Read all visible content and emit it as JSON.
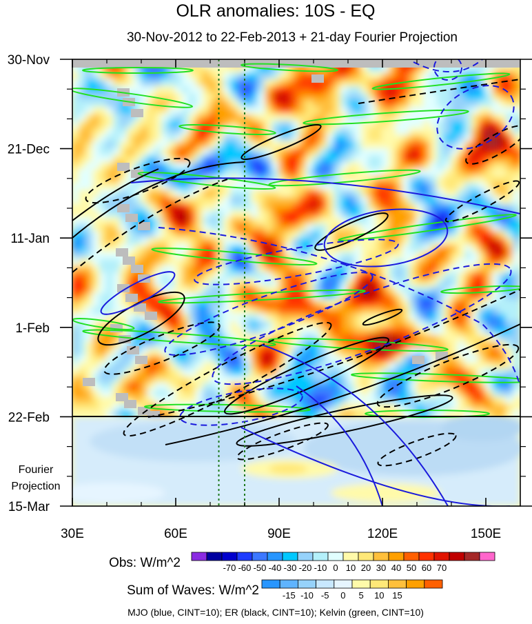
{
  "chart_data": {
    "type": "heatmap",
    "title": "OLR anomalies: 10S - EQ",
    "subtitle": "30-Nov-2012 to 22-Feb-2013 + 21-day Fourier Projection",
    "x_axis": {
      "range": [
        30,
        160
      ],
      "ticks": [
        {
          "value": 30,
          "label": "30E"
        },
        {
          "value": 60,
          "label": "60E"
        },
        {
          "value": 90,
          "label": "90E"
        },
        {
          "value": 120,
          "label": "120E"
        },
        {
          "value": 150,
          "label": "150E"
        }
      ]
    },
    "y_axis": {
      "direction": "top-to-bottom",
      "range_days": [
        0,
        105
      ],
      "ticks": [
        {
          "day": 0,
          "label": "30-Nov"
        },
        {
          "day": 21,
          "label": "21-Dec"
        },
        {
          "day": 42,
          "label": "11-Jan"
        },
        {
          "day": 63,
          "label": "1-Feb"
        },
        {
          "day": 84,
          "label": "22-Feb"
        },
        {
          "day": 105,
          "label": "15-Mar"
        }
      ],
      "projection_start_day": 84,
      "projection_label": [
        "Fourier",
        "Projection"
      ]
    },
    "reference_lines_lon": [
      72.5,
      80
    ],
    "obs_colorbar": {
      "label": "Obs: W/m^2",
      "colors": [
        "#8b2be2",
        "#0000a0",
        "#0000cd",
        "#1e3cff",
        "#3c78ff",
        "#2896ff",
        "#00c8ff",
        "#96d2fa",
        "#b4f0fa",
        "#e1ffff",
        "#fffaaa",
        "#ffe878",
        "#ffc03c",
        "#ffa000",
        "#ff6000",
        "#ff3200",
        "#e11400",
        "#c00000",
        "#a52828",
        "#ff66cc"
      ],
      "labels": [
        "-70",
        "-60",
        "-50",
        "-40",
        "-30",
        "-20",
        "-10",
        "0",
        "10",
        "20",
        "30",
        "40",
        "50",
        "60",
        "70"
      ]
    },
    "waves_colorbar": {
      "label": "Sum of Waves: W/m^2",
      "colors": [
        "#2896ff",
        "#5fb4ff",
        "#96d2fa",
        "#c8e8ff",
        "#e6f5ff",
        "#fffaaa",
        "#ffe878",
        "#ffc03c",
        "#ffa000",
        "#ff6000"
      ],
      "labels": [
        "-15",
        "-10",
        "-5",
        "0",
        "5",
        "10",
        "15"
      ]
    },
    "footer": "MJO (blue, CINT=10); ER (black, CINT=10); Kelvin (green, CINT=10)",
    "contour_series": [
      {
        "wave": "MJO",
        "color": "#1a1adc"
      },
      {
        "wave": "ER",
        "color": "#000000"
      },
      {
        "wave": "Kelvin",
        "color": "#22e022"
      }
    ],
    "missing_color": "#bdbdbd"
  }
}
